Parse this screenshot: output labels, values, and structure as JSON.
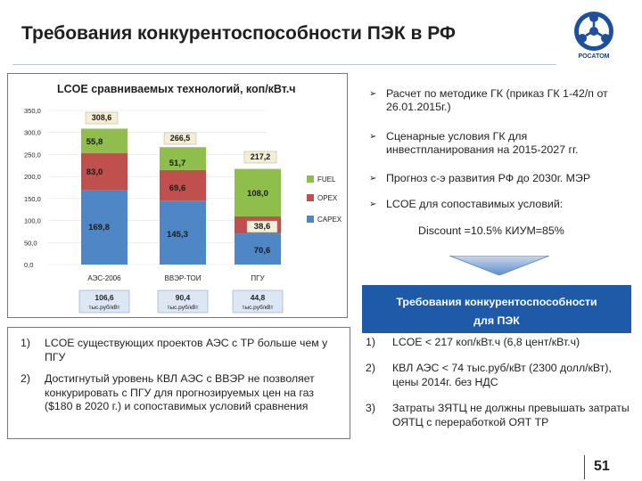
{
  "slide": {
    "title": "Требования конкурентоспособности ПЭК в РФ",
    "logo_text": "РОСАТОМ",
    "page_number": "51"
  },
  "chart_data": {
    "type": "bar",
    "stacked": true,
    "title": "LCOE сравниваемых технологий, коп/кВт.ч",
    "categories": [
      "АЭС-2006",
      "ВВЭР-ТОИ",
      "ПГУ"
    ],
    "series": [
      {
        "name": "CAPEX",
        "values": [
          169.8,
          145.3,
          70.6
        ],
        "labels": [
          "169,8",
          "145,3",
          "70,6"
        ],
        "color": "#4f86c6"
      },
      {
        "name": "OPEX",
        "values": [
          83.0,
          69.6,
          38.6
        ],
        "labels": [
          "83,0",
          "69,6",
          "38,6"
        ],
        "color": "#c0504d"
      },
      {
        "name": "FUEL",
        "values": [
          55.8,
          51.7,
          108.0
        ],
        "labels": [
          "55,8",
          "51,7",
          "108,0"
        ],
        "color": "#8fbe4c"
      }
    ],
    "totals": [
      "308,6",
      "266,5",
      "217,2"
    ],
    "yticks": [
      "350,0",
      "300,0",
      "250,0",
      "200,0",
      "150,0",
      "100,0",
      "50,0",
      "0,0"
    ],
    "ylim": [
      0,
      350
    ],
    "legend_placement": "right",
    "capex_boxes": [
      {
        "value": "106,6",
        "unit": "тыс.руб/кВт"
      },
      {
        "value": "90,4",
        "unit": "тыс.руб/кВт"
      },
      {
        "value": "44,8",
        "unit": "тыс.руб/кВт"
      }
    ]
  },
  "bullets": [
    "Расчет по методике ГК (приказ ГК 1-42/п от 26.01.2015г.)",
    "Сценарные условия ГК для инвестпланирования на 2015-2027 гг.",
    "Прогноз с-э развития РФ до 2030г. МЭР",
    "LCOE  для сопоставимых условий:"
  ],
  "assumptions": "Discount =10.5%  КИУМ=85%",
  "requirements": {
    "header_line1": "Требования конкурентоспособности",
    "header_line2": "для ПЭК",
    "items": [
      {
        "num": "1)",
        "text": "LCOE < 217 коп/кВт.ч  (6,8 цент/кВт.ч)"
      },
      {
        "num": "2)",
        "text": "КВЛ АЭС < 74 тыс.руб/кВт (2300 долл/кВт), цены 2014г. без НДС"
      },
      {
        "num": "3)",
        "text": "Затраты ЗЯТЦ не должны превышать затраты ОЯТЦ с переработкой ОЯТ ТР"
      }
    ]
  },
  "notes": [
    {
      "num": "1)",
      "text": "LCOE существующих проектов АЭС с ТР больше чем у ПГУ"
    },
    {
      "num": "2)",
      "text": "Достигнутый уровень КВЛ АЭС с ВВЭР не позволяет конкурировать с ПГУ для прогнозируемых цен на газ ($180 в 2020 г.) и сопоставимых условий  сравнения"
    }
  ]
}
